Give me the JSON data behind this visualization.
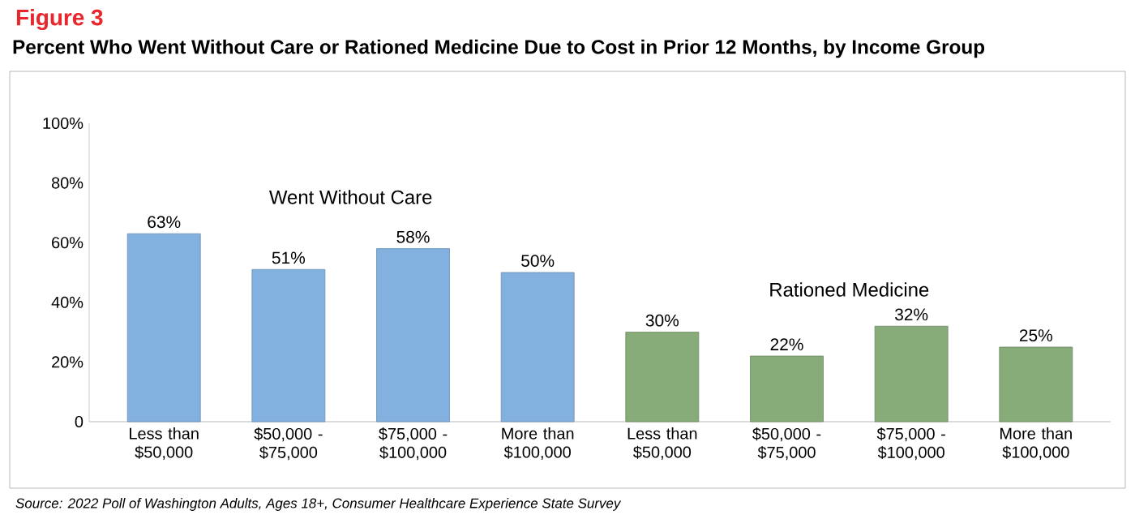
{
  "chart_data": {
    "type": "bar",
    "title": "Figure 3",
    "subtitle": "Percent Who Went Without Care or Rationed Medicine Due to Cost in Prior 12 Months, by Income Group",
    "categories": [
      "Less than $50,000",
      "$50,000 - $75,000",
      "$75,000 - $100,000",
      "More than $100,000",
      "Less than $50,000",
      "$50,000 - $75,000",
      "$75,000 - $100,000",
      "More than $100,000"
    ],
    "series": [
      {
        "name": "Went Without Care",
        "color": "#82b1df",
        "values": [
          63,
          51,
          58,
          50,
          null,
          null,
          null,
          null
        ],
        "value_labels": [
          "63%",
          "51%",
          "58%",
          "50%",
          null,
          null,
          null,
          null
        ]
      },
      {
        "name": "Rationed Medicine",
        "color": "#88ab7a",
        "values": [
          null,
          null,
          null,
          null,
          30,
          22,
          32,
          25
        ],
        "value_labels": [
          null,
          null,
          null,
          null,
          "30%",
          "22%",
          "32%",
          "25%"
        ]
      }
    ],
    "ylim": [
      0,
      100
    ],
    "yticks": [
      0,
      {
        "value": 20,
        "label": "20%"
      },
      {
        "value": 40,
        "label": "40%"
      },
      {
        "value": 60,
        "label": "60%"
      },
      {
        "value": 80,
        "label": "80%"
      },
      {
        "value": 100,
        "label": "100%"
      }
    ],
    "grid": false,
    "legend": false,
    "annotations": [
      "Source: 2022 Poll of Washington Adults, Ages 18+, Consumer Healthcare Experience State Survey"
    ]
  }
}
